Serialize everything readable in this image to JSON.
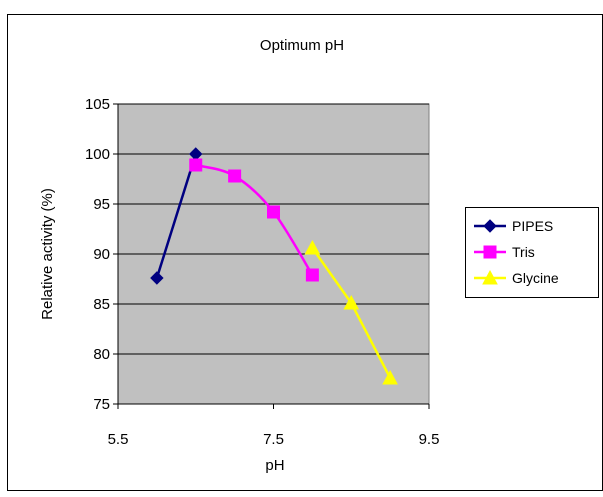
{
  "chart_data": {
    "type": "line",
    "title": "Optimum pH",
    "xlabel": "pH",
    "ylabel": "Relative activity (%)",
    "xlim": [
      5.5,
      9.5
    ],
    "ylim": [
      75,
      105
    ],
    "xticks": [
      5.5,
      7.5,
      9.5
    ],
    "xtick_labels": [
      "5.5",
      "7.5",
      "9.5"
    ],
    "yticks": [
      75,
      80,
      85,
      90,
      95,
      100,
      105
    ],
    "ytick_labels": [
      "75",
      "80",
      "85",
      "90",
      "95",
      "100",
      "105"
    ],
    "grid": "horizontal",
    "plot_background": "#c0c0c0",
    "legend_position": "right",
    "series": [
      {
        "name": "PIPES",
        "color": "#000080",
        "marker": "diamond",
        "smooth": false,
        "x": [
          6.0,
          6.5
        ],
        "y": [
          87.6,
          100.0
        ]
      },
      {
        "name": "Tris",
        "color": "#ff00ff",
        "marker": "square",
        "smooth": true,
        "x": [
          6.5,
          7.0,
          7.5,
          8.0
        ],
        "y": [
          98.9,
          97.8,
          94.2,
          87.9
        ]
      },
      {
        "name": "Glycine",
        "color": "#ffff00",
        "marker": "triangle",
        "smooth": false,
        "x": [
          8.0,
          8.5,
          9.0
        ],
        "y": [
          90.6,
          85.1,
          77.6
        ]
      }
    ]
  }
}
